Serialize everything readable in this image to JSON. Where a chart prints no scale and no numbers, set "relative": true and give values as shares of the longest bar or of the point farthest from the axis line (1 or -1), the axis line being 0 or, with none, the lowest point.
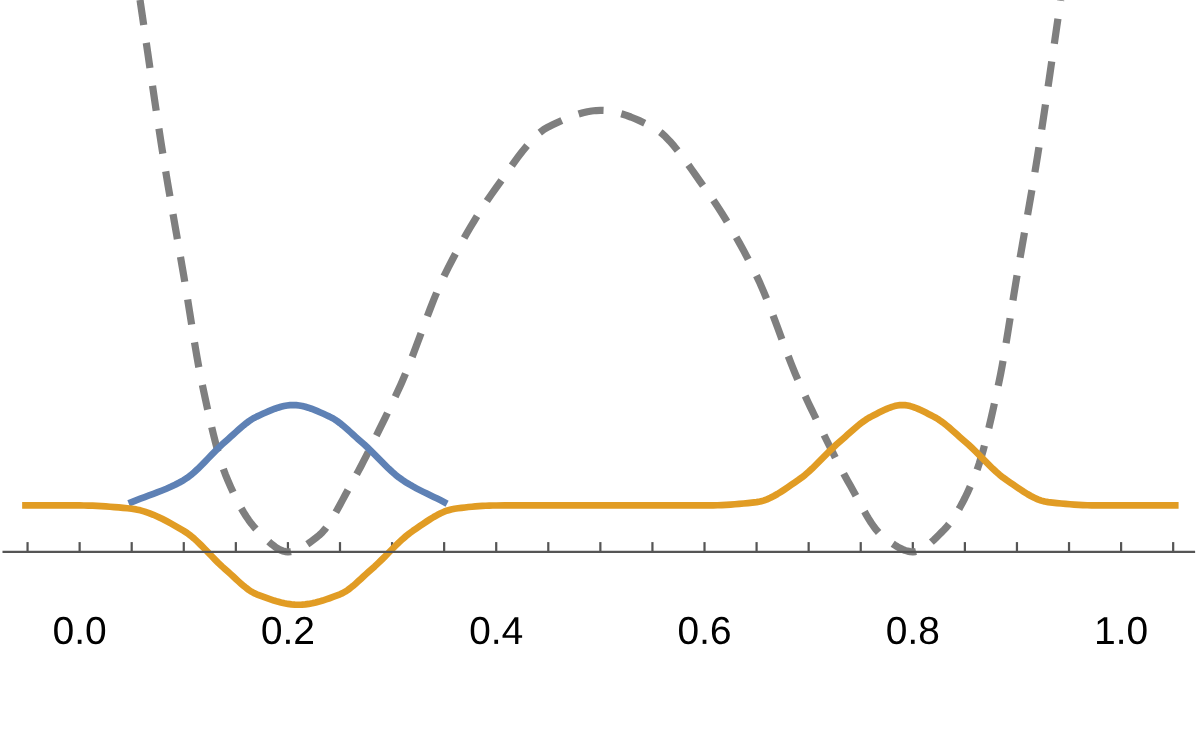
{
  "chart_data": {
    "type": "line",
    "relative": true,
    "xlim": [
      -0.073,
      1.07
    ],
    "xticks": [
      {
        "value": -0.05,
        "label": null
      },
      {
        "value": 0,
        "label": "0.0"
      },
      {
        "value": 0.05,
        "label": null
      },
      {
        "value": 0.1,
        "label": null
      },
      {
        "value": 0.15,
        "label": null
      },
      {
        "value": 0.2,
        "label": "0.2"
      },
      {
        "value": 0.25,
        "label": null
      },
      {
        "value": 0.3,
        "label": null
      },
      {
        "value": 0.35,
        "label": null
      },
      {
        "value": 0.4,
        "label": "0.4"
      },
      {
        "value": 0.45,
        "label": null
      },
      {
        "value": 0.5,
        "label": null
      },
      {
        "value": 0.55,
        "label": null
      },
      {
        "value": 0.6,
        "label": "0.6"
      },
      {
        "value": 0.65,
        "label": null
      },
      {
        "value": 0.7,
        "label": null
      },
      {
        "value": 0.75,
        "label": null
      },
      {
        "value": 0.8,
        "label": "0.8"
      },
      {
        "value": 0.85,
        "label": null
      },
      {
        "value": 0.9,
        "label": null
      },
      {
        "value": 0.95,
        "label": null
      },
      {
        "value": 1.0,
        "label": "1.0"
      },
      {
        "value": 1.05,
        "label": null
      }
    ],
    "tick_labels": "x",
    "grid": false,
    "legend": false,
    "marker": "none",
    "series": [
      {
        "color": "#7f7f7f",
        "line_style": "dashed",
        "x": [
          0.058,
          0.08,
          0.1,
          0.117,
          0.14,
          0.17,
          0.2,
          0.23,
          0.26,
          0.29,
          0.31,
          0.35,
          0.4,
          0.45,
          0.5,
          0.55,
          0.6,
          0.65,
          0.69,
          0.71,
          0.74,
          0.77,
          0.8,
          0.83,
          0.86,
          0.883,
          0.9,
          0.92,
          0.942
        ],
        "values": [
          1.0,
          0.72,
          0.5,
          0.31,
          0.14,
          0.04,
          0.0,
          0.03,
          0.12,
          0.23,
          0.31,
          0.5,
          0.66,
          0.77,
          0.8,
          0.77,
          0.66,
          0.5,
          0.31,
          0.23,
          0.12,
          0.03,
          0.0,
          0.04,
          0.14,
          0.31,
          0.5,
          0.72,
          1.0
        ]
      },
      {
        "color": "#5e81b5",
        "line_style": "solid",
        "x": [
          0.05,
          0.1,
          0.14,
          0.17,
          0.205,
          0.24,
          0.27,
          0.31,
          0.35
        ],
        "values": [
          0.09,
          0.13,
          0.2,
          0.245,
          0.266,
          0.245,
          0.2,
          0.13,
          0.09
        ]
      },
      {
        "color": "#e19c24",
        "line_style": "solid",
        "x": [
          -0.052,
          0.0,
          0.05,
          0.1,
          0.14,
          0.17,
          0.21,
          0.25,
          0.28,
          0.32,
          0.36,
          0.4,
          0.5,
          0.6,
          0.65,
          0.69,
          0.73,
          0.76,
          0.79,
          0.82,
          0.85,
          0.89,
          0.93,
          0.98,
          1.052
        ],
        "values": [
          0.084,
          0.084,
          0.078,
          0.038,
          -0.032,
          -0.077,
          -0.096,
          -0.077,
          -0.032,
          0.038,
          0.078,
          0.084,
          0.084,
          0.084,
          0.09,
          0.13,
          0.2,
          0.245,
          0.266,
          0.245,
          0.2,
          0.13,
          0.09,
          0.084,
          0.084
        ]
      }
    ]
  }
}
